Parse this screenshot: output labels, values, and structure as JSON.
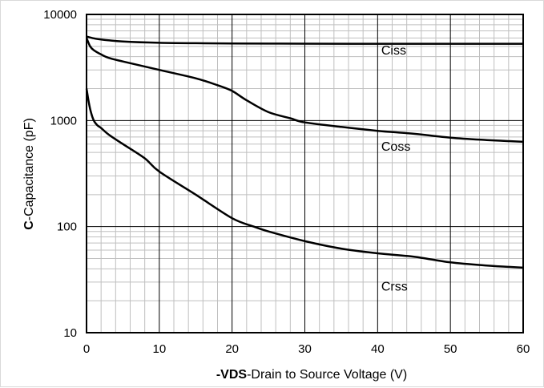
{
  "chart_data": {
    "type": "line",
    "xlabel_bold": "-VDS",
    "xlabel_rest": "-Drain to Source Voltage (V)",
    "ylabel_bold": "C",
    "ylabel_rest": "-Capacitance (pF)",
    "xlim": [
      0,
      60
    ],
    "ylim": [
      10,
      10000
    ],
    "yscale": "log",
    "grid": true,
    "x_ticks": [
      0,
      10,
      20,
      30,
      40,
      50,
      60
    ],
    "y_ticks": [
      10,
      100,
      1000,
      10000
    ],
    "x_tick_labels": [
      "0",
      "10",
      "20",
      "30",
      "40",
      "50",
      "60"
    ],
    "y_tick_labels": [
      "10",
      "100",
      "1000",
      "10000"
    ],
    "series": [
      {
        "name": "Ciss",
        "label_at": [
          40.5,
          4200
        ],
        "x": [
          0,
          1,
          2,
          3,
          5,
          10,
          15,
          20,
          25,
          30,
          40,
          50,
          60
        ],
        "y": [
          6200,
          5950,
          5800,
          5700,
          5550,
          5400,
          5350,
          5320,
          5310,
          5300,
          5290,
          5290,
          5290
        ]
      },
      {
        "name": "Coss",
        "label_at": [
          40.5,
          520
        ],
        "x": [
          0,
          0.5,
          1,
          2,
          3,
          5,
          10,
          15,
          18,
          20,
          22,
          25,
          28,
          30,
          35,
          40,
          45,
          50,
          55,
          60
        ],
        "y": [
          6000,
          5000,
          4600,
          4200,
          3900,
          3600,
          3000,
          2500,
          2150,
          1900,
          1550,
          1200,
          1050,
          960,
          870,
          800,
          750,
          690,
          655,
          630
        ]
      },
      {
        "name": "Crss",
        "label_at": [
          40.5,
          25
        ],
        "x": [
          0,
          0.3,
          0.6,
          1,
          1.5,
          2,
          3,
          5,
          8,
          10,
          15,
          20,
          23,
          25,
          30,
          35,
          40,
          45,
          50,
          55,
          60
        ],
        "y": [
          2000,
          1500,
          1200,
          1000,
          900,
          850,
          740,
          600,
          440,
          330,
          200,
          120,
          100,
          90,
          73,
          62,
          56,
          52,
          46,
          43,
          41
        ]
      }
    ]
  }
}
